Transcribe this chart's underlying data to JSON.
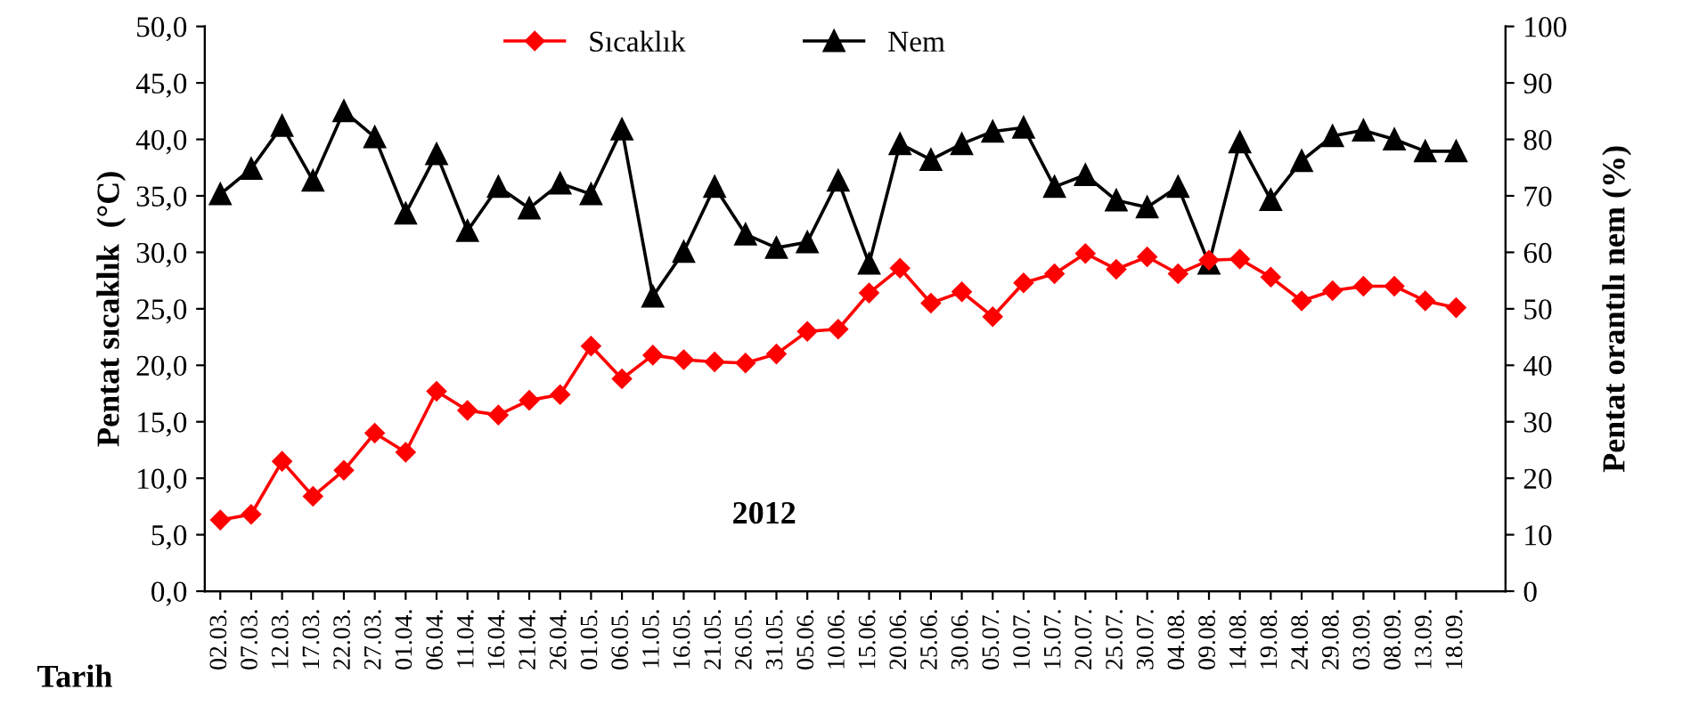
{
  "chart_data": {
    "type": "line",
    "xlabel": "Tarih",
    "ylabel": "Pentat sıcaklık  (°C)",
    "y2label": "Pentat orantılı nem (%)",
    "annotations": [
      "2012"
    ],
    "categories": [
      "02.03.",
      "07.03.",
      "12.03.",
      "17.03.",
      "22.03.",
      "27.03.",
      "01.04.",
      "06.04.",
      "11.04.",
      "16.04.",
      "21.04.",
      "26.04.",
      "01.05.",
      "06.05.",
      "11.05.",
      "16.05.",
      "21.05.",
      "26.05.",
      "31.05.",
      "05.06.",
      "10.06.",
      "15.06.",
      "20.06.",
      "25.06.",
      "30.06.",
      "05.07.",
      "10.07.",
      "15.07.",
      "20.07.",
      "25.07.",
      "30.07.",
      "04.08.",
      "09.08.",
      "14.08.",
      "19.08.",
      "24.08.",
      "29.08.",
      "03.09.",
      "08.09.",
      "13.09.",
      "18.09."
    ],
    "series": [
      {
        "name": "Sıcaklık",
        "color": "#ff0000",
        "marker": "diamond",
        "values": [
          6.3,
          6.8,
          11.5,
          8.4,
          10.7,
          14.0,
          12.3,
          17.7,
          16.0,
          15.6,
          16.9,
          17.4,
          21.7,
          18.8,
          20.9,
          20.5,
          20.3,
          20.2,
          21.0,
          23.0,
          23.2,
          26.4,
          28.6,
          25.5,
          26.5,
          24.3,
          27.3,
          28.1,
          29.9,
          28.5,
          29.6,
          28.1,
          29.3,
          29.4,
          27.8,
          25.7,
          26.6,
          27.0,
          27.0,
          25.7,
          25.1
        ]
      },
      {
        "name": "Nem",
        "color": "#000000",
        "marker": "triangle",
        "axis": "y2",
        "values": [
          70.3,
          74.8,
          82.4,
          72.7,
          85.0,
          80.4,
          66.9,
          77.4,
          63.8,
          71.6,
          67.8,
          72.2,
          70.3,
          81.8,
          52.2,
          60.1,
          71.6,
          63.2,
          60.8,
          61.8,
          72.7,
          58.0,
          79.2,
          76.4,
          79.2,
          81.4,
          82.1,
          71.6,
          73.7,
          69.2,
          68.0,
          71.6,
          58.0,
          79.5,
          69.3,
          76.2,
          80.6,
          81.6,
          80.0,
          77.9,
          77.9
        ]
      }
    ],
    "ylim": [
      0,
      50
    ],
    "yticks": [
      {
        "value": 0,
        "label": "0,0"
      },
      {
        "value": 5,
        "label": "5,0"
      },
      {
        "value": 10,
        "label": "10,0"
      },
      {
        "value": 15,
        "label": "15,0"
      },
      {
        "value": 20,
        "label": "20,0"
      },
      {
        "value": 25,
        "label": "25,0"
      },
      {
        "value": 30,
        "label": "30,0"
      },
      {
        "value": 35,
        "label": "35,0"
      },
      {
        "value": 40,
        "label": "40,0"
      },
      {
        "value": 45,
        "label": "45,0"
      },
      {
        "value": 50,
        "label": "50,0"
      }
    ],
    "y2lim": [
      0,
      100
    ],
    "y2ticks": [
      0,
      10,
      20,
      30,
      40,
      50,
      60,
      70,
      80,
      90,
      100
    ],
    "grid": false,
    "legend": "top",
    "line_style": "solid"
  }
}
